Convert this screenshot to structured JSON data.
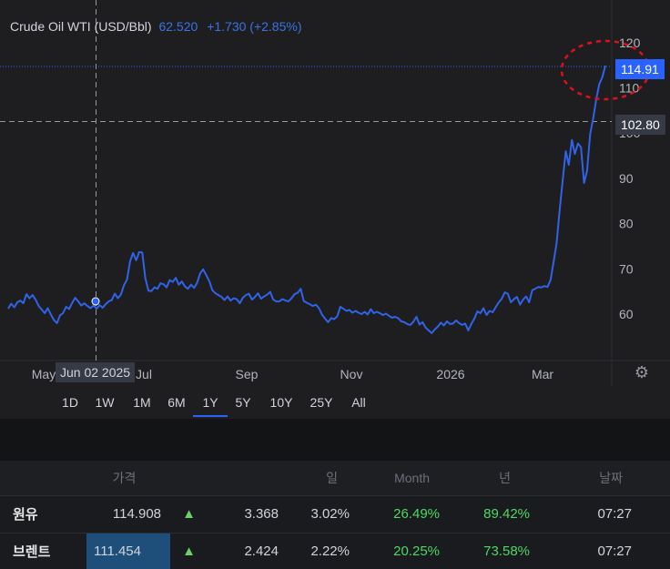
{
  "chart": {
    "legend_name": "Crude Oil WTI (USD/Bbl)",
    "legend_value": "62.520",
    "legend_change": "+1.730 (+2.85%)",
    "current_price_tag": "114.91",
    "crosshair_price_tag": "102.80",
    "crosshair_date_label": "Jun 02 2025",
    "settings_icon": "gear-icon",
    "colors": {
      "line": "#2f63e8",
      "accent": "#2962ff",
      "annotation": "#e0101a"
    }
  },
  "range_buttons": [
    "1D",
    "1W",
    "1M",
    "6M",
    "1Y",
    "5Y",
    "10Y",
    "25Y",
    "All"
  ],
  "active_range": "1Y",
  "table": {
    "headers": [
      "",
      "가격",
      "",
      "",
      "일",
      "Month",
      "년",
      "날짜"
    ],
    "rows": [
      {
        "name": "원유",
        "price": "114.908",
        "arrow": "▲",
        "change": "3.368",
        "day": "3.02%",
        "month": "26.49%",
        "year": "89.42%",
        "time": "07:27"
      },
      {
        "name": "브렌트",
        "price": "111.454",
        "arrow": "▲",
        "change": "2.424",
        "day": "2.22%",
        "month": "20.25%",
        "year": "73.58%",
        "time": "07:27"
      }
    ]
  },
  "chart_data": {
    "type": "line",
    "title": "Crude Oil WTI (USD/Bbl)",
    "xlabel": "",
    "ylabel": "",
    "ylim": [
      51,
      126
    ],
    "y_ticks": [
      60,
      70,
      80,
      90,
      100,
      110,
      120
    ],
    "x_tick_labels": [
      "May",
      "Jul",
      "Sep",
      "Nov",
      "2026",
      "Mar"
    ],
    "grid": false,
    "series": [
      {
        "values": [
          61.2,
          62.3,
          61.5,
          62.6,
          63.0,
          62.4,
          64.4,
          63.5,
          64.2,
          63.2,
          61.8,
          61.0,
          60.2,
          61.3,
          59.9,
          58.7,
          58.0,
          59.7,
          60.2,
          61.6,
          61.1,
          62.5,
          63.6,
          62.8,
          61.9,
          62.4,
          61.8,
          61.3,
          61.9,
          61.2,
          62.0,
          61.4,
          62.2,
          62.8,
          63.1,
          64.5,
          63.5,
          64.3,
          66.4,
          67.6,
          71.7,
          73.5,
          71.9,
          73.7,
          73.6,
          68.0,
          65.2,
          65.1,
          65.9,
          65.6,
          66.8,
          66.6,
          65.9,
          67.5,
          67.1,
          68.0,
          66.5,
          67.2,
          66.1,
          65.6,
          66.5,
          65.8,
          66.9,
          69.0,
          69.9,
          68.6,
          67.3,
          65.3,
          64.6,
          64.2,
          63.8,
          63.1,
          63.9,
          63.0,
          63.5,
          63.3,
          62.4,
          63.6,
          64.2,
          64.5,
          63.2,
          63.8,
          64.6,
          63.4,
          63.9,
          64.3,
          64.9,
          63.2,
          62.8,
          62.8,
          63.3,
          63.0,
          62.8,
          63.5,
          64.4,
          64.7,
          65.6,
          62.9,
          62.5,
          62.2,
          61.8,
          62.1,
          61.3,
          59.9,
          59.0,
          58.2,
          59.1,
          58.9,
          59.5,
          61.6,
          61.2,
          60.7,
          60.9,
          60.3,
          60.7,
          60.3,
          60.0,
          60.5,
          59.9,
          61.1,
          60.2,
          60.5,
          60.2,
          59.8,
          60.1,
          59.6,
          59.2,
          59.4,
          59.1,
          58.4,
          58.2,
          57.8,
          57.6,
          58.3,
          59.4,
          57.7,
          58.2,
          57.0,
          56.4,
          55.8,
          56.6,
          57.2,
          58.1,
          57.5,
          58.4,
          57.8,
          57.9,
          58.6,
          58.0,
          57.6,
          57.9,
          56.4,
          57.8,
          59.0,
          60.6,
          60.2,
          61.3,
          59.8,
          60.7,
          60.4,
          61.5,
          62.6,
          63.4,
          64.8,
          64.5,
          62.6,
          63.3,
          63.8,
          62.1,
          63.2,
          63.9,
          62.6,
          65.3,
          65.6,
          66.0,
          65.9,
          66.2,
          66.0,
          67.5,
          71.5,
          75.6,
          83.0,
          89.5,
          96.0,
          93.0,
          98.5,
          95.4,
          97.7,
          96.9,
          89.0,
          91.7,
          99.8,
          103.2,
          107.5,
          110.8,
          112.4,
          114.9
        ]
      }
    ]
  }
}
